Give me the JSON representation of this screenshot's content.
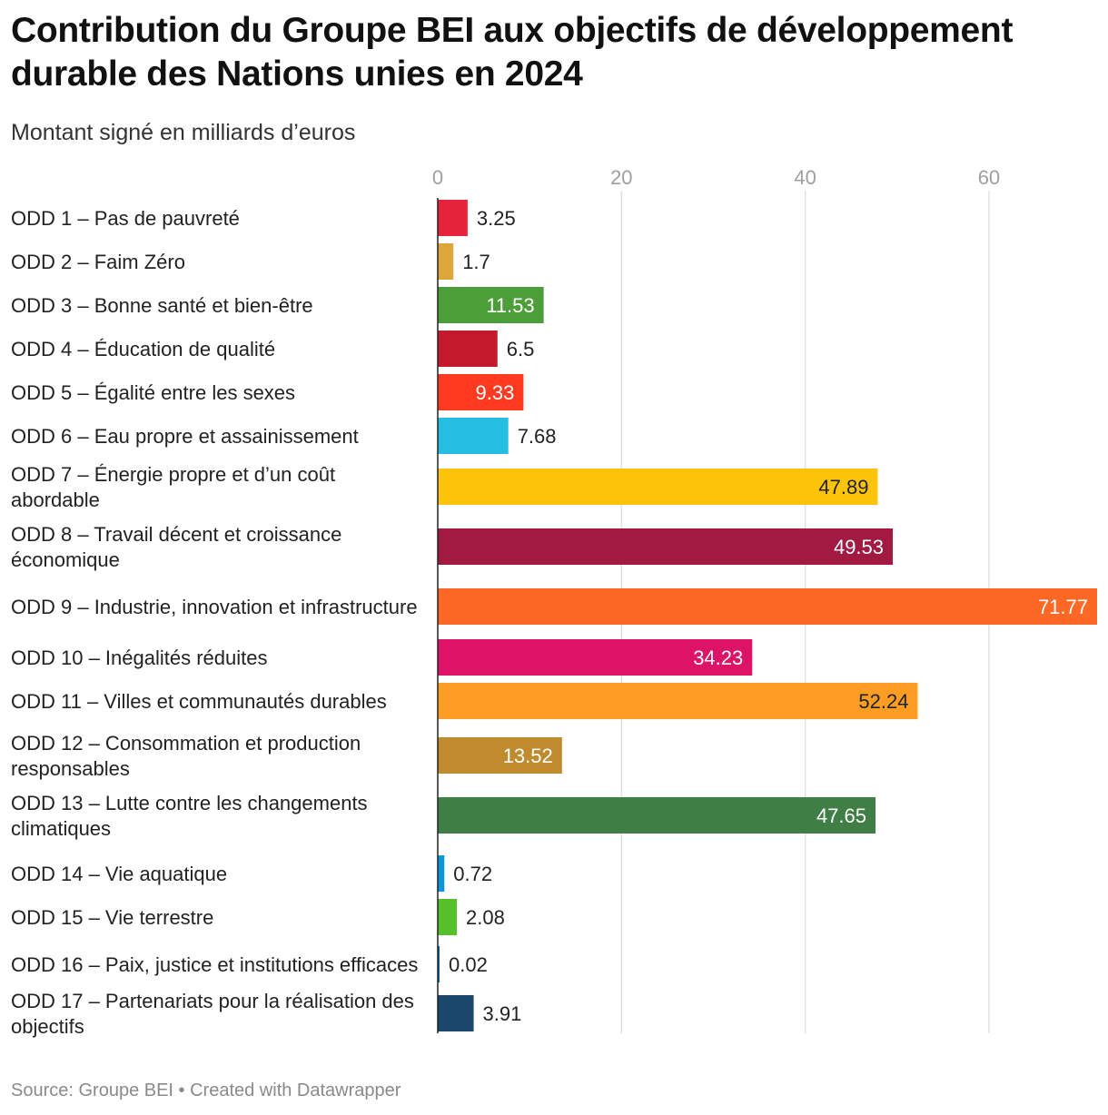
{
  "chart_data": {
    "type": "bar",
    "orientation": "horizontal",
    "title": "Contribution du Groupe BEI aux objectifs de développement durable des Nations unies en 2024",
    "subtitle": "Montant signé en milliards d’euros",
    "xlim": [
      0,
      71.77
    ],
    "xticks": [
      "0",
      "20",
      "40",
      "60"
    ],
    "grid": true,
    "categories": [
      "ODD 1 – Pas de pauvreté",
      "ODD 2 – Faim Zéro",
      "ODD 3 – Bonne santé et bien-être",
      "ODD 4 – Éducation de qualité",
      "ODD 5 – Égalité entre les sexes",
      "ODD 6 – Eau propre et assainissement",
      "ODD 7 – Énergie propre et d’un coût abordable",
      "ODD 8 – Travail décent et croissance économique",
      "ODD 9 – Industrie, innovation et infrastructure",
      "ODD 10 – Inégalités réduites",
      "ODD 11 – Villes et communautés durables",
      "ODD 12 – Consommation et production responsables",
      "ODD 13 – Lutte contre les changements climatiques",
      "ODD 14 – Vie aquatique",
      "ODD 15 – Vie terrestre",
      "ODD 16 – Paix, justice et institutions efficaces",
      "ODD 17 – Partenariats pour la réalisation des objectifs"
    ],
    "values": [
      3.25,
      1.7,
      11.53,
      6.5,
      9.33,
      7.68,
      47.89,
      49.53,
      71.77,
      34.23,
      52.24,
      13.52,
      47.65,
      0.72,
      2.08,
      0.02,
      3.91
    ],
    "value_labels": [
      "3.25",
      "1.7",
      "11.53",
      "6.5",
      "9.33",
      "7.68",
      "47.89",
      "49.53",
      "71.77",
      "34.23",
      "52.24",
      "13.52",
      "47.65",
      "0.72",
      "2.08",
      "0.02",
      "3.91"
    ],
    "colors": [
      "#e5243b",
      "#dda63a",
      "#4c9f38",
      "#c5192d",
      "#ff3a21",
      "#26bde2",
      "#fcc30b",
      "#a21942",
      "#fd6925",
      "#dd1367",
      "#fd9d24",
      "#bf8b2e",
      "#3f7e44",
      "#0a97d9",
      "#56c02b",
      "#00689d",
      "#19486a"
    ]
  },
  "footer": {
    "source": "Source: Groupe BEI • Created with Datawrapper"
  }
}
